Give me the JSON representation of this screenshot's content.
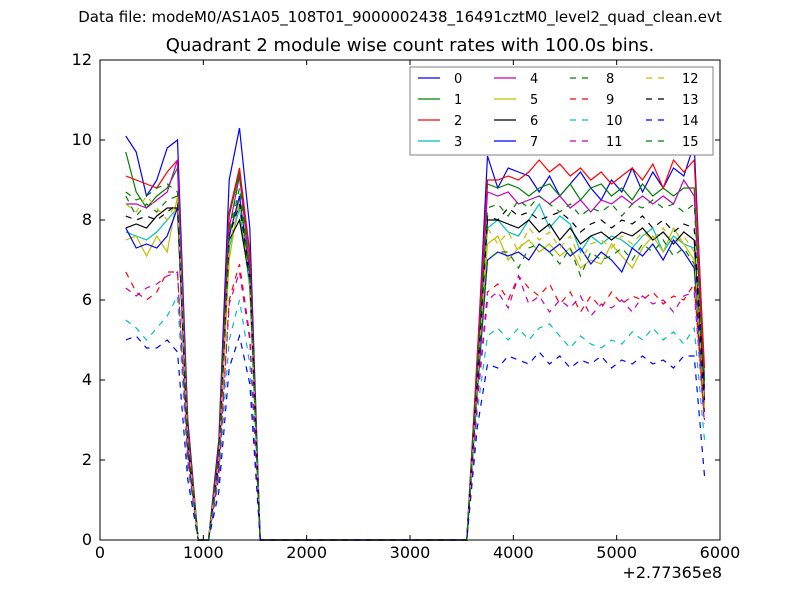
{
  "header": "Data file: modeM0/AS1A05_108T01_9000002438_16491cztM0_level2_quad_clean.evt",
  "chart_data": {
    "type": "line",
    "title": "Quadrant 2 module wise count rates with 100.0s bins.",
    "xlabel": "",
    "ylabel": "",
    "xlim": [
      0,
      6000
    ],
    "ylim": [
      0,
      12
    ],
    "x_offset_label": "+2.77365e8",
    "xticks": [
      "0",
      "1000",
      "2000",
      "3000",
      "4000",
      "5000",
      "6000"
    ],
    "yticks": [
      "0",
      "2",
      "4",
      "6",
      "8",
      "10",
      "12"
    ],
    "grid": false,
    "legend_position": "top-right",
    "x": [
      250,
      350,
      450,
      550,
      650,
      750,
      850,
      950,
      1050,
      1150,
      1250,
      1350,
      1450,
      1550,
      1650,
      1750,
      1850,
      1950,
      2050,
      2150,
      2250,
      2350,
      2450,
      2550,
      2650,
      2750,
      2850,
      2950,
      3050,
      3150,
      3250,
      3350,
      3450,
      3550,
      3650,
      3750,
      3850,
      3950,
      4050,
      4150,
      4250,
      4350,
      4450,
      4550,
      4650,
      4750,
      4850,
      4950,
      5050,
      5150,
      5250,
      5350,
      5450,
      5550,
      5650,
      5750,
      5850
    ],
    "series": [
      {
        "name": "0",
        "color": "#0000ff",
        "dash": "solid",
        "values": [
          10.1,
          9.7,
          8.6,
          9.0,
          9.8,
          10.0,
          3.0,
          0,
          0,
          2.5,
          9.0,
          10.3,
          7.8,
          0,
          0,
          0,
          0,
          0,
          0,
          0,
          0,
          0,
          0,
          0,
          0,
          0,
          0,
          0,
          0,
          0,
          0,
          0,
          0,
          0,
          4.5,
          9.6,
          8.8,
          9.3,
          9.2,
          9.1,
          8.7,
          9.1,
          8.6,
          8.9,
          9.2,
          8.8,
          8.5,
          9.0,
          8.7,
          9.3,
          8.7,
          9.2,
          8.8,
          9.3,
          9.1,
          9.9,
          4.0
        ]
      },
      {
        "name": "1",
        "color": "#008000",
        "dash": "solid",
        "values": [
          9.7,
          8.7,
          8.3,
          8.6,
          8.8,
          9.3,
          2.7,
          0,
          0,
          2.2,
          8.1,
          9.2,
          7.1,
          0,
          0,
          0,
          0,
          0,
          0,
          0,
          0,
          0,
          0,
          0,
          0,
          0,
          0,
          0,
          0,
          0,
          0,
          0,
          0,
          0,
          4.3,
          8.9,
          8.8,
          8.9,
          8.8,
          8.6,
          8.8,
          8.9,
          8.6,
          8.9,
          8.5,
          8.8,
          8.9,
          8.6,
          8.8,
          8.5,
          8.9,
          8.6,
          8.8,
          8.6,
          8.8,
          8.8,
          4.0
        ]
      },
      {
        "name": "2",
        "color": "#ff0000",
        "dash": "solid",
        "values": [
          9.1,
          9.0,
          8.9,
          8.8,
          9.2,
          9.5,
          2.8,
          0,
          0,
          2.3,
          8.2,
          9.3,
          7.2,
          0,
          0,
          0,
          0,
          0,
          0,
          0,
          0,
          0,
          0,
          0,
          0,
          0,
          0,
          0,
          0,
          0,
          0,
          0,
          0,
          0,
          4.6,
          9.0,
          9.0,
          9.1,
          9.0,
          9.2,
          9.5,
          9.2,
          9.4,
          9.1,
          9.3,
          9.0,
          9.2,
          8.9,
          9.1,
          9.3,
          9.0,
          9.4,
          8.8,
          9.5,
          9.2,
          9.5,
          4.3
        ]
      },
      {
        "name": "3",
        "color": "#00bfbf",
        "dash": "solid",
        "values": [
          7.7,
          7.6,
          7.5,
          7.7,
          8.0,
          8.3,
          2.4,
          0,
          0,
          2.0,
          7.3,
          8.3,
          6.3,
          0,
          0,
          0,
          0,
          0,
          0,
          0,
          0,
          0,
          0,
          0,
          0,
          0,
          0,
          0,
          0,
          0,
          0,
          0,
          0,
          0,
          3.9,
          7.8,
          8.0,
          7.7,
          7.6,
          8.0,
          8.4,
          7.8,
          8.1,
          7.9,
          7.2,
          7.6,
          7.4,
          7.6,
          7.5,
          7.3,
          7.6,
          7.8,
          7.2,
          7.6,
          7.4,
          7.3,
          3.5
        ]
      },
      {
        "name": "4",
        "color": "#bf00bf",
        "dash": "solid",
        "values": [
          8.4,
          8.4,
          8.3,
          8.5,
          8.7,
          9.5,
          2.6,
          0,
          0,
          2.2,
          7.8,
          9.1,
          6.8,
          0,
          0,
          0,
          0,
          0,
          0,
          0,
          0,
          0,
          0,
          0,
          0,
          0,
          0,
          0,
          0,
          0,
          0,
          0,
          0,
          0,
          4.3,
          8.7,
          8.6,
          8.7,
          8.4,
          8.5,
          8.6,
          8.4,
          8.6,
          8.3,
          8.5,
          8.2,
          8.5,
          8.4,
          8.6,
          8.4,
          8.6,
          8.4,
          8.6,
          8.4,
          9.0,
          8.6,
          3.8
        ]
      },
      {
        "name": "5",
        "color": "#bfbf00",
        "dash": "solid",
        "values": [
          7.5,
          7.6,
          7.1,
          7.6,
          7.2,
          8.6,
          2.4,
          0,
          0,
          2.0,
          7.0,
          8.6,
          6.4,
          0,
          0,
          0,
          0,
          0,
          0,
          0,
          0,
          0,
          0,
          0,
          0,
          0,
          0,
          0,
          0,
          0,
          0,
          0,
          0,
          0,
          3.9,
          7.4,
          7.6,
          7.0,
          7.3,
          7.5,
          7.2,
          7.4,
          7.1,
          7.3,
          6.8,
          7.0,
          6.9,
          7.4,
          7.1,
          6.8,
          7.3,
          7.6,
          7.2,
          7.8,
          7.4,
          7.0,
          3.4
        ]
      },
      {
        "name": "6",
        "color": "#000000",
        "dash": "solid",
        "values": [
          7.8,
          7.9,
          7.8,
          8.1,
          8.3,
          8.3,
          2.4,
          0,
          0,
          2.0,
          7.5,
          8.0,
          6.5,
          0,
          0,
          0,
          0,
          0,
          0,
          0,
          0,
          0,
          0,
          0,
          0,
          0,
          0,
          0,
          0,
          0,
          0,
          0,
          0,
          0,
          4.0,
          8.0,
          8.0,
          7.9,
          7.8,
          8.0,
          7.7,
          7.9,
          7.5,
          7.8,
          7.4,
          7.6,
          7.7,
          7.5,
          7.7,
          7.6,
          7.8,
          7.5,
          7.7,
          7.4,
          7.7,
          7.5,
          3.5
        ]
      },
      {
        "name": "7",
        "color": "#0000ff",
        "dash": "solid",
        "values": [
          7.8,
          7.3,
          7.4,
          7.3,
          7.6,
          8.3,
          2.3,
          0,
          0,
          1.9,
          7.6,
          8.6,
          6.6,
          0,
          0,
          0,
          0,
          0,
          0,
          0,
          0,
          0,
          0,
          0,
          0,
          0,
          0,
          0,
          0,
          0,
          0,
          0,
          0,
          0,
          3.7,
          7.0,
          7.2,
          7.1,
          7.2,
          7.0,
          7.4,
          7.2,
          7.4,
          7.1,
          7.3,
          6.9,
          7.2,
          7.0,
          6.7,
          7.3,
          7.1,
          7.4,
          7.0,
          7.5,
          7.2,
          6.8,
          3.2
        ]
      },
      {
        "name": "8",
        "color": "#008000",
        "dash": "dashed",
        "values": [
          8.6,
          8.1,
          8.4,
          8.2,
          8.5,
          8.6,
          2.5,
          0,
          0,
          2.1,
          7.7,
          9.1,
          6.6,
          0,
          0,
          0,
          0,
          0,
          0,
          0,
          0,
          0,
          0,
          0,
          0,
          0,
          0,
          0,
          0,
          0,
          0,
          0,
          0,
          0,
          4.0,
          7.0,
          7.2,
          7.2,
          6.8,
          7.3,
          7.4,
          7.2,
          6.9,
          7.3,
          6.6,
          7.2,
          7.0,
          7.1,
          7.3,
          7.0,
          7.4,
          7.2,
          7.5,
          7.1,
          7.3,
          6.9,
          3.3
        ]
      },
      {
        "name": "9",
        "color": "#ff0000",
        "dash": "dashed",
        "values": [
          6.7,
          6.2,
          6.0,
          6.2,
          6.7,
          6.7,
          2.1,
          0,
          0,
          1.7,
          6.0,
          6.9,
          5.1,
          0,
          0,
          0,
          0,
          0,
          0,
          0,
          0,
          0,
          0,
          0,
          0,
          0,
          0,
          0,
          0,
          0,
          0,
          0,
          0,
          0,
          3.5,
          6.2,
          6.4,
          6.0,
          6.6,
          6.3,
          6.1,
          6.4,
          5.9,
          6.2,
          5.7,
          6.1,
          5.8,
          6.2,
          5.9,
          6.1,
          6.0,
          6.2,
          5.9,
          6.1,
          6.0,
          6.4,
          3.0
        ]
      },
      {
        "name": "10",
        "color": "#00bfbf",
        "dash": "dashed",
        "values": [
          5.5,
          5.3,
          5.0,
          5.3,
          5.6,
          6.1,
          1.8,
          0,
          0,
          1.5,
          5.0,
          6.0,
          4.4,
          0,
          0,
          0,
          0,
          0,
          0,
          0,
          0,
          0,
          0,
          0,
          0,
          0,
          0,
          0,
          0,
          0,
          0,
          0,
          0,
          0,
          3.2,
          5.1,
          5.3,
          5.0,
          5.3,
          5.0,
          5.3,
          5.4,
          5.1,
          4.8,
          5.1,
          4.9,
          4.8,
          5.0,
          4.9,
          5.2,
          5.0,
          5.3,
          5.0,
          5.2,
          4.9,
          5.3,
          2.5
        ]
      },
      {
        "name": "11",
        "color": "#bf00bf",
        "dash": "dashed",
        "values": [
          6.3,
          6.1,
          6.3,
          6.4,
          6.6,
          6.7,
          2.0,
          0,
          0,
          1.6,
          5.9,
          6.7,
          5.0,
          0,
          0,
          0,
          0,
          0,
          0,
          0,
          0,
          0,
          0,
          0,
          0,
          0,
          0,
          0,
          0,
          0,
          0,
          0,
          0,
          0,
          3.4,
          6.0,
          6.2,
          5.8,
          6.6,
          5.9,
          6.1,
          5.7,
          6.0,
          5.8,
          6.1,
          5.6,
          5.9,
          5.8,
          6.0,
          5.7,
          6.1,
          5.9,
          6.0,
          5.7,
          6.1,
          6.2,
          2.9
        ]
      },
      {
        "name": "12",
        "color": "#bfbf00",
        "dash": "dashed",
        "values": [
          8.4,
          8.2,
          8.6,
          8.3,
          8.0,
          8.5,
          2.5,
          0,
          0,
          2.0,
          7.4,
          8.4,
          6.5,
          0,
          0,
          0,
          0,
          0,
          0,
          0,
          0,
          0,
          0,
          0,
          0,
          0,
          0,
          0,
          0,
          0,
          0,
          0,
          0,
          0,
          3.9,
          7.8,
          7.4,
          7.7,
          7.2,
          7.8,
          7.5,
          7.7,
          7.3,
          7.6,
          7.0,
          7.4,
          7.5,
          7.3,
          7.6,
          7.4,
          7.7,
          7.5,
          7.8,
          7.4,
          7.6,
          7.2,
          3.3
        ]
      },
      {
        "name": "13",
        "color": "#000000",
        "dash": "dashed",
        "values": [
          8.1,
          8.0,
          8.1,
          8.0,
          8.2,
          8.4,
          2.5,
          0,
          0,
          2.1,
          7.6,
          8.4,
          6.6,
          0,
          0,
          0,
          0,
          0,
          0,
          0,
          0,
          0,
          0,
          0,
          0,
          0,
          0,
          0,
          0,
          0,
          0,
          0,
          0,
          0,
          4.1,
          8.1,
          8.0,
          8.3,
          8.1,
          8.2,
          8.0,
          8.1,
          8.2,
          8.0,
          7.7,
          7.9,
          8.0,
          7.8,
          8.0,
          7.9,
          8.1,
          7.8,
          8.0,
          7.7,
          7.9,
          7.8,
          3.6
        ]
      },
      {
        "name": "14",
        "color": "#0000ff",
        "dash": "dashed",
        "values": [
          5.0,
          5.1,
          4.8,
          4.8,
          5.0,
          4.7,
          1.5,
          0,
          0,
          1.2,
          4.3,
          5.1,
          3.9,
          0,
          0,
          0,
          0,
          0,
          0,
          0,
          0,
          0,
          0,
          0,
          0,
          0,
          0,
          0,
          0,
          0,
          0,
          0,
          0,
          0,
          2.8,
          4.4,
          4.3,
          4.6,
          4.5,
          4.4,
          4.7,
          4.4,
          4.6,
          4.3,
          4.5,
          4.4,
          4.6,
          4.3,
          4.5,
          4.4,
          4.6,
          4.4,
          4.5,
          4.3,
          4.6,
          4.6,
          1.6
        ]
      },
      {
        "name": "15",
        "color": "#008000",
        "dash": "dashed",
        "values": [
          8.7,
          8.5,
          8.6,
          8.8,
          8.9,
          8.7,
          2.6,
          0,
          0,
          2.1,
          7.6,
          8.8,
          6.5,
          0,
          0,
          0,
          0,
          0,
          0,
          0,
          0,
          0,
          0,
          0,
          0,
          0,
          0,
          0,
          0,
          0,
          0,
          0,
          0,
          0,
          4.2,
          8.3,
          8.4,
          8.1,
          8.5,
          8.3,
          8.6,
          8.4,
          8.2,
          8.4,
          8.1,
          8.3,
          8.2,
          8.4,
          8.1,
          8.4,
          8.3,
          8.5,
          8.3,
          8.4,
          8.2,
          8.4,
          3.9
        ]
      }
    ]
  }
}
